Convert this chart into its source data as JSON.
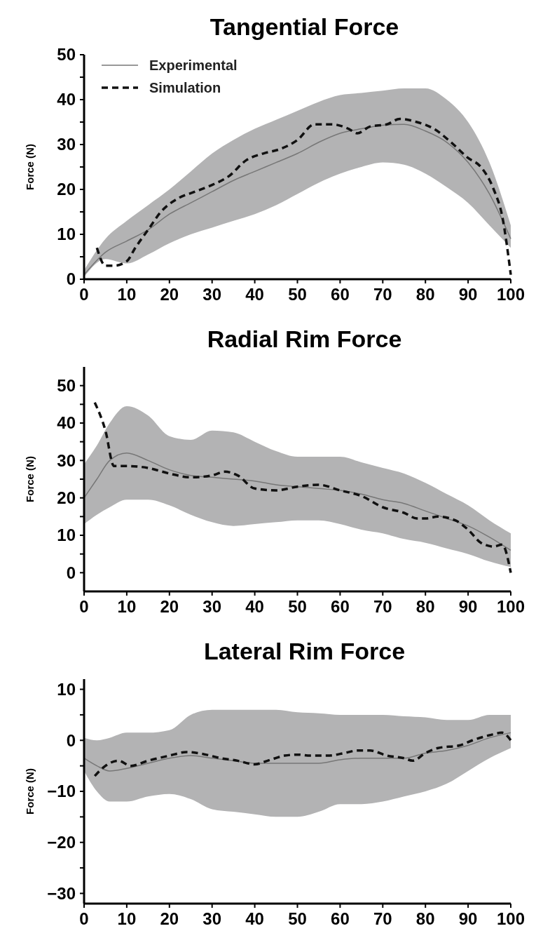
{
  "chart_data": [
    {
      "type": "line",
      "title": "Tangential Force",
      "ylabel": "Force (N)",
      "xlim": [
        0,
        100
      ],
      "xticks": [
        0,
        10,
        20,
        30,
        40,
        50,
        60,
        70,
        80,
        90,
        100
      ],
      "ylim": [
        0,
        50
      ],
      "yticks": [
        0,
        {
          "value": 5,
          "label": null
        },
        10,
        {
          "value": 15,
          "label": null
        },
        20,
        {
          "value": 25,
          "label": null
        },
        30,
        {
          "value": 35,
          "label": null
        },
        40,
        {
          "value": 45,
          "label": null
        },
        50
      ],
      "legend": "top left",
      "series": [
        {
          "name": "Experimental",
          "color": "#777777",
          "line_style": "solid",
          "x": [
            0,
            5,
            10,
            15,
            20,
            25,
            30,
            35,
            40,
            45,
            50,
            55,
            60,
            65,
            70,
            75,
            80,
            85,
            90,
            95,
            100
          ],
          "values": [
            1,
            6,
            8.5,
            11,
            14.5,
            17,
            19.5,
            22,
            24,
            26,
            28,
            30.5,
            32.5,
            33.5,
            34.3,
            34.5,
            33,
            30.5,
            26,
            19,
            9
          ],
          "lower": [
            0.5,
            4.5,
            3.5,
            5.5,
            8,
            10,
            11.5,
            13,
            14.5,
            16.5,
            19,
            21.5,
            23.5,
            25,
            26,
            25.5,
            23.5,
            20.5,
            17,
            12,
            7
          ],
          "upper": [
            2,
            9,
            13,
            16.5,
            20,
            24,
            28,
            31,
            33.5,
            35.5,
            37.5,
            39.5,
            41,
            41.5,
            42,
            42.5,
            42.5,
            40,
            35,
            26,
            12
          ]
        },
        {
          "name": "Simulation",
          "color": "#111111",
          "line_style": "dashed",
          "x": [
            3,
            5,
            7,
            10,
            12,
            15,
            18,
            22,
            26,
            30,
            34,
            38,
            42,
            46,
            50,
            54,
            58,
            62,
            64,
            67,
            71,
            74,
            78,
            82,
            86,
            90,
            93,
            96,
            98,
            100
          ],
          "values": [
            7,
            3,
            3,
            4,
            7,
            11,
            15,
            18,
            19.5,
            21,
            23,
            26.5,
            28,
            29,
            31,
            34.5,
            34.5,
            33.5,
            32.5,
            34,
            34.5,
            35.7,
            35,
            33.5,
            30.5,
            27,
            25,
            20,
            14,
            1
          ]
        }
      ]
    },
    {
      "type": "line",
      "title": "Radial Rim Force",
      "ylabel": "Force (N)",
      "xlim": [
        0,
        100
      ],
      "xticks": [
        0,
        10,
        20,
        30,
        40,
        50,
        60,
        70,
        80,
        90,
        100
      ],
      "ylim": [
        -5,
        55
      ],
      "yticks": [
        0,
        {
          "value": 5,
          "label": null
        },
        10,
        {
          "value": 15,
          "label": null
        },
        20,
        {
          "value": 25,
          "label": null
        },
        30,
        {
          "value": 35,
          "label": null
        },
        40,
        {
          "value": 45,
          "label": null
        },
        50
      ],
      "series": [
        {
          "color": "#777777",
          "line_style": "solid",
          "x": [
            0,
            3,
            6,
            10,
            15,
            20,
            25,
            30,
            35,
            40,
            45,
            50,
            55,
            60,
            65,
            70,
            75,
            80,
            85,
            90,
            95,
            100
          ],
          "values": [
            20,
            25,
            30,
            32,
            30,
            27.5,
            26,
            25.5,
            25,
            24.5,
            23.5,
            23,
            22.5,
            22,
            21,
            19.5,
            18.5,
            16.5,
            14.5,
            12.5,
            9.5,
            6
          ],
          "lower": [
            13,
            15.5,
            17.5,
            19.5,
            19.5,
            18,
            15.5,
            13.5,
            12.5,
            13,
            13.5,
            14,
            14,
            13,
            11.5,
            10.5,
            9,
            8,
            6.5,
            5,
            3,
            1.5
          ],
          "upper": [
            29,
            34,
            40,
            44.5,
            42,
            36.5,
            35.5,
            38,
            37.5,
            35,
            32.5,
            31,
            31,
            31,
            29.5,
            28,
            26.5,
            24,
            21,
            18,
            14,
            10.5
          ]
        },
        {
          "color": "#111111",
          "line_style": "dashed",
          "x": [
            2.5,
            5,
            7,
            10,
            15,
            20,
            25,
            30,
            33,
            36,
            40,
            45,
            50,
            55,
            60,
            65,
            70,
            75,
            78,
            80,
            83,
            87,
            90,
            93,
            96,
            98,
            100
          ],
          "values": [
            45.5,
            38,
            28.5,
            28.5,
            28,
            26.5,
            25.5,
            26,
            27,
            26,
            22.5,
            22,
            23,
            23.5,
            22,
            20.5,
            17.5,
            16,
            14.5,
            14.5,
            15,
            14,
            11.5,
            8,
            7,
            7.5,
            0
          ]
        }
      ]
    },
    {
      "type": "line",
      "title": "Lateral Rim Force",
      "ylabel": "Force (N)",
      "xlim": [
        0,
        100
      ],
      "xticks": [
        0,
        10,
        20,
        30,
        40,
        50,
        60,
        70,
        80,
        90,
        100
      ],
      "ylim": [
        -32,
        12
      ],
      "yticks": [
        -30,
        {
          "value": -25,
          "label": null
        },
        -20,
        {
          "value": -15,
          "label": null
        },
        -10,
        {
          "value": -5,
          "label": null
        },
        0,
        {
          "value": 5,
          "label": null
        },
        10
      ],
      "series": [
        {
          "color": "#777777",
          "line_style": "solid",
          "x": [
            0,
            3,
            6,
            10,
            15,
            20,
            25,
            30,
            35,
            40,
            45,
            50,
            55,
            60,
            65,
            70,
            75,
            80,
            85,
            90,
            95,
            100
          ],
          "values": [
            -3.5,
            -5,
            -6,
            -5.5,
            -4.5,
            -3.5,
            -3,
            -3.5,
            -4,
            -4.5,
            -4.5,
            -4.5,
            -4.5,
            -3.8,
            -3.5,
            -3.5,
            -3.5,
            -2.5,
            -2,
            -1,
            0.5,
            1.5
          ],
          "lower": [
            -6,
            -10,
            -12,
            -12,
            -11,
            -10.5,
            -11.5,
            -13.5,
            -14,
            -14.5,
            -15,
            -15,
            -14,
            -12.5,
            -12.5,
            -12,
            -11,
            -10,
            -8.5,
            -6,
            -3.5,
            -1.5
          ],
          "upper": [
            0.5,
            0,
            0.5,
            1.5,
            1.5,
            2,
            5,
            6,
            6,
            6,
            6,
            5.5,
            5.3,
            5,
            5,
            5,
            4.7,
            4.5,
            4,
            4,
            5,
            5
          ]
        },
        {
          "color": "#111111",
          "line_style": "dashed",
          "x": [
            2.5,
            5,
            8,
            11,
            15,
            20,
            24,
            28,
            32,
            36,
            40,
            43,
            47,
            50,
            53,
            57,
            61,
            64,
            67,
            71,
            75,
            77,
            80,
            83,
            88,
            91,
            95,
            98,
            100
          ],
          "values": [
            -7,
            -5,
            -4,
            -5,
            -4,
            -3,
            -2.3,
            -2.7,
            -3.5,
            -4,
            -4.7,
            -4,
            -3,
            -2.8,
            -3,
            -3,
            -2.5,
            -2,
            -2,
            -3,
            -3.5,
            -4,
            -2.5,
            -1.5,
            -1,
            0,
            1,
            1.5,
            0
          ]
        }
      ]
    }
  ]
}
